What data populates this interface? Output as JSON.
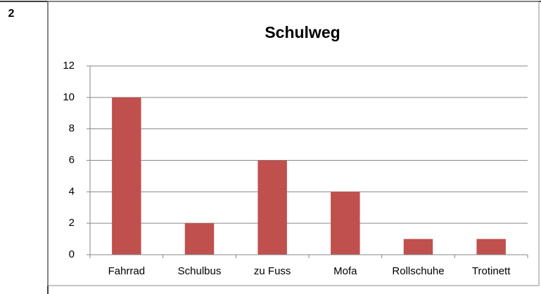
{
  "row_label": "2",
  "chart_data": {
    "type": "bar",
    "title": "Schulweg",
    "categories": [
      "Fahrrad",
      "Schulbus",
      "zu Fuss",
      "Mofa",
      "Rollschuhe",
      "Trotinett"
    ],
    "values": [
      10,
      2,
      6,
      4,
      1,
      1
    ],
    "color": "#c0504d",
    "ylim": [
      0,
      12
    ],
    "yticks": [
      0,
      2,
      4,
      6,
      8,
      10,
      12
    ],
    "grid": true
  }
}
